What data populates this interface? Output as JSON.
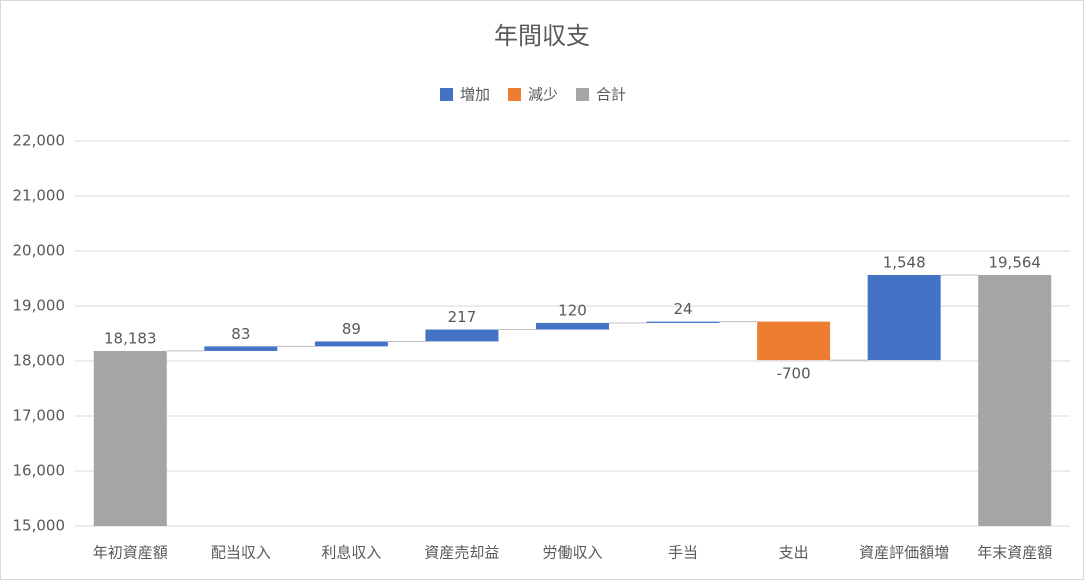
{
  "chart_data": {
    "type": "waterfall",
    "title": "年間収支",
    "legend": [
      {
        "name": "増加",
        "color": "#4472c4"
      },
      {
        "name": "減少",
        "color": "#ed7d31"
      },
      {
        "name": "合計",
        "color": "#a5a5a5"
      }
    ],
    "categories": [
      "年初資産額",
      "配当収入",
      "利息収入",
      "資産売却益",
      "労働収入",
      "手当",
      "支出",
      "資産評価額増",
      "年末資産額"
    ],
    "values": [
      18183,
      83,
      89,
      217,
      120,
      24,
      -700,
      1548,
      19564
    ],
    "value_labels": [
      "18,183",
      "83",
      "89",
      "217",
      "120",
      "24",
      "-700",
      "1,548",
      "19,564"
    ],
    "is_total": [
      true,
      false,
      false,
      false,
      false,
      false,
      false,
      false,
      true
    ],
    "ylim": [
      15000,
      22000
    ],
    "yticks": [
      {
        "value": 15000,
        "label": "15,000"
      },
      {
        "value": 16000,
        "label": "16,000"
      },
      {
        "value": 17000,
        "label": "17,000"
      },
      {
        "value": 18000,
        "label": "18,000"
      },
      {
        "value": 19000,
        "label": "19,000"
      },
      {
        "value": 20000,
        "label": "20,000"
      },
      {
        "value": 21000,
        "label": "21,000"
      },
      {
        "value": 22000,
        "label": "22,000"
      }
    ],
    "grid": true
  }
}
